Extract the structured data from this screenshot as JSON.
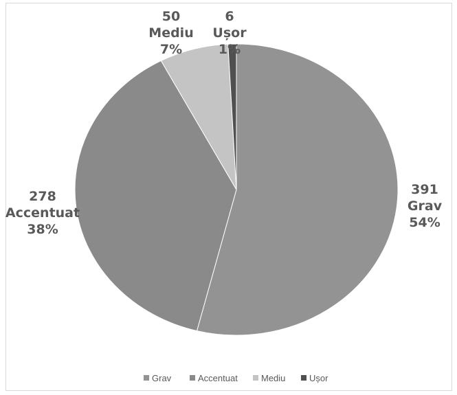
{
  "chart_data": {
    "type": "pie",
    "title": "",
    "slices": [
      {
        "name": "Grav",
        "value": 391,
        "percent": "54%",
        "color": "#939393"
      },
      {
        "name": "Accentuat",
        "value": 278,
        "percent": "38%",
        "color": "#8a8a8a"
      },
      {
        "name": "Mediu",
        "value": 50,
        "percent": "7%",
        "color": "#c4c4c4"
      },
      {
        "name": "Ușor",
        "value": 6,
        "percent": "1%",
        "color": "#505050"
      }
    ],
    "legend_position": "bottom",
    "data_labels": "value, category name, percentage"
  }
}
